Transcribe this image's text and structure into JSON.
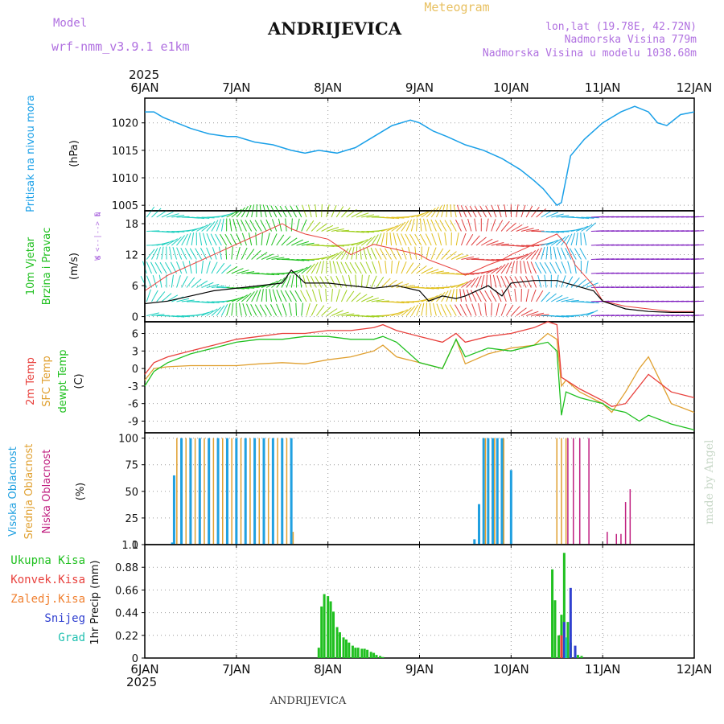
{
  "header": {
    "title": "ANDRIJEVICA",
    "model_label": "Model",
    "model_name": "wrf-nmm_v3.9.1 e1km",
    "meteogram_label": "Meteogram",
    "lonlat": "lon,lat (19.78E, 42.72N)",
    "elevation": "Nadmorska Visina 779m",
    "model_elevation": "Nadmorska Visina u modelu 1038.68m",
    "year_top": "2025"
  },
  "footer": {
    "year_bottom": "2025",
    "station": "ANDRIJEVICA",
    "credit": "made by Angel"
  },
  "days": [
    "6JAN",
    "7JAN",
    "8JAN",
    "9JAN",
    "10JAN",
    "11JAN",
    "12JAN"
  ],
  "colors": {
    "pressure": "#1aa0e8",
    "temp2m": "#e8403c",
    "sfctemp": "#e0a030",
    "dewpt": "#20c020",
    "cloud_high": "#20a0e0",
    "cloud_mid": "#e0a030",
    "cloud_low": "#c02080",
    "precip_total": "#20c020",
    "precip_conv": "#e8403c",
    "precip_freez": "#f08030",
    "precip_snow": "#3040d0",
    "precip_hail": "#20c0b0",
    "wind_speed": "#000000",
    "gust": "#e8403c"
  },
  "chart_data": [
    {
      "type": "line",
      "panel": "pressure",
      "ylabel_lines": [
        "Pritisak na nivou mora",
        "(hPa)"
      ],
      "ylim": [
        1004,
        1024.5
      ],
      "yticks": [
        1005,
        1010,
        1015,
        1020
      ],
      "x_days": [
        0,
        0.1,
        0.2,
        0.35,
        0.5,
        0.7,
        0.9,
        1.0,
        1.2,
        1.4,
        1.6,
        1.75,
        1.9,
        2.1,
        2.3,
        2.5,
        2.7,
        2.9,
        3.0,
        3.15,
        3.3,
        3.5,
        3.7,
        3.9,
        4.1,
        4.25,
        4.35,
        4.45,
        4.5,
        4.55,
        4.65,
        4.8,
        5.0,
        5.2,
        5.35,
        5.5,
        5.6,
        5.7,
        5.85,
        6.0
      ],
      "series": [
        {
          "name": "",
          "values": [
            1022,
            1022,
            1021,
            1020,
            1019,
            1018,
            1017.5,
            1017.5,
            1016.5,
            1016,
            1015,
            1014.5,
            1015,
            1014.5,
            1015.5,
            1017.5,
            1019.5,
            1020.5,
            1020,
            1018.5,
            1017.5,
            1016,
            1015,
            1013.5,
            1011.5,
            1009.5,
            1008,
            1006,
            1005,
            1005.5,
            1014,
            1017,
            1020,
            1022,
            1023,
            1022,
            1020,
            1019.5,
            1021.5,
            1022
          ]
        }
      ]
    },
    {
      "type": "line",
      "panel": "wind",
      "ylabel_lines": [
        "10m Vjetar",
        "Brzina i Pravac",
        "(m/s)"
      ],
      "compass": [
        "N",
        "W <--|--> E",
        "S"
      ],
      "ylim": [
        -1,
        20.5
      ],
      "yticks": [
        0,
        6,
        12,
        18
      ],
      "x_days": [
        0,
        0.25,
        0.5,
        0.75,
        1.0,
        1.25,
        1.5,
        1.6,
        1.75,
        2.0,
        2.25,
        2.5,
        2.75,
        3.0,
        3.1,
        3.25,
        3.4,
        3.5,
        3.75,
        3.9,
        4.0,
        4.25,
        4.5,
        4.6,
        4.7,
        4.9,
        5.0,
        5.25,
        5.5,
        5.75,
        6.0
      ],
      "series": [
        {
          "name": "",
          "values": [
            2.5,
            3,
            4,
            5,
            5.5,
            6,
            6.5,
            9,
            6.5,
            6.5,
            6,
            5.5,
            6,
            5,
            3,
            4,
            3.5,
            4,
            6,
            4,
            6.5,
            7,
            7,
            6.5,
            6,
            5,
            3,
            1.5,
            1,
            0.8,
            0.8
          ]
        },
        {
          "name": "",
          "values": [
            5,
            8,
            10,
            12,
            14,
            16,
            18,
            17,
            16,
            15,
            12,
            14,
            13,
            12,
            11,
            10,
            9,
            8,
            10,
            11,
            12,
            14,
            16,
            14,
            10,
            6,
            3,
            2,
            1.5,
            1,
            1
          ]
        }
      ],
      "arrow_colors": [
        "#20d0c0",
        "#20c020",
        "#a0d020",
        "#e0c020",
        "#e04040",
        "#20b0e0",
        "#8020c0"
      ]
    },
    {
      "type": "line",
      "panel": "temperature",
      "ylabel_lines": [
        "2m Temp",
        "SFC Temp",
        "dewpt Temp",
        "(C)"
      ],
      "ylim": [
        -11,
        8
      ],
      "yticks": [
        -9,
        -6,
        -3,
        0,
        3,
        6
      ],
      "x_days": [
        0,
        0.1,
        0.25,
        0.5,
        0.75,
        1.0,
        1.25,
        1.5,
        1.75,
        2.0,
        2.25,
        2.5,
        2.6,
        2.75,
        3.0,
        3.25,
        3.4,
        3.5,
        3.75,
        4.0,
        4.25,
        4.4,
        4.5,
        4.55,
        4.6,
        4.75,
        5.0,
        5.1,
        5.25,
        5.4,
        5.5,
        5.75,
        6.0
      ],
      "series": [
        {
          "name": "",
          "values": [
            -1,
            1,
            2,
            3,
            4,
            5,
            5.5,
            6,
            6,
            6.5,
            6.5,
            7,
            7.5,
            6.5,
            5.5,
            4.5,
            6,
            4.5,
            5.5,
            6,
            7,
            8,
            7.5,
            -1.5,
            -2,
            -3.5,
            -5.5,
            -6.5,
            -6,
            -3,
            -1,
            -4,
            -5
          ]
        },
        {
          "name": "",
          "values": [
            -2,
            0,
            0.3,
            0.5,
            0.5,
            0.5,
            0.8,
            1,
            0.8,
            1.5,
            2,
            3,
            4,
            2,
            1,
            0,
            5,
            0.8,
            2.5,
            3.5,
            4,
            6,
            5,
            -3,
            -2,
            -4,
            -6,
            -7.5,
            -4,
            0,
            2,
            -6,
            -7.5
          ]
        },
        {
          "name": "",
          "values": [
            -3,
            -0.5,
            1,
            2.5,
            3.5,
            4.5,
            5,
            5,
            5.5,
            5.5,
            5,
            5,
            5.5,
            4.5,
            1,
            0,
            5,
            2,
            3.5,
            3,
            4,
            4.5,
            3,
            -8,
            -4,
            -5,
            -6,
            -7,
            -7.5,
            -9,
            -8,
            -9.5,
            -10.5
          ]
        }
      ]
    },
    {
      "type": "bar",
      "panel": "clouds",
      "ylabel_lines": [
        "Visoka Oblacnost",
        "Srednja Oblacnost",
        "Niska Oblacnost",
        "(%)"
      ],
      "ylim": [
        0,
        105
      ],
      "yticks": [
        0,
        25,
        50,
        75,
        100
      ],
      "series": [
        {
          "name": "",
          "x_days": [
            0.3,
            0.32,
            0.4,
            0.5,
            0.6,
            0.7,
            0.8,
            0.9,
            1.0,
            1.1,
            1.2,
            1.3,
            1.4,
            1.5,
            1.6,
            3.6,
            3.65,
            3.7,
            3.75,
            3.8,
            3.85,
            3.9,
            4.0
          ],
          "values": [
            2,
            65,
            100,
            100,
            100,
            100,
            100,
            100,
            100,
            100,
            100,
            100,
            100,
            100,
            100,
            5,
            38,
            100,
            100,
            100,
            100,
            100,
            70
          ]
        },
        {
          "name": "",
          "x_days": [
            0.35,
            0.45,
            0.55,
            0.65,
            0.75,
            0.85,
            0.95,
            1.05,
            1.15,
            1.25,
            1.35,
            1.45,
            1.55,
            1.62,
            3.72,
            3.82,
            3.92,
            4.5,
            4.55,
            4.6
          ],
          "values": [
            100,
            100,
            100,
            100,
            100,
            100,
            100,
            100,
            100,
            100,
            100,
            100,
            100,
            12,
            100,
            100,
            100,
            100,
            100,
            100
          ]
        },
        {
          "name": "",
          "x_days": [
            4.62,
            4.68,
            4.75,
            4.85,
            5.05,
            5.15,
            5.2,
            5.25,
            5.3
          ],
          "values": [
            100,
            100,
            100,
            100,
            12,
            10,
            10,
            40,
            52
          ]
        }
      ]
    },
    {
      "type": "bar",
      "panel": "precip",
      "ylabel_lines": [
        "1hr Precip (mm)"
      ],
      "legend": [
        "Ukupna Kisa",
        "Konvek.Kisa",
        "Zaledj.Kisa",
        "Snijeg",
        "Grad"
      ],
      "ylim": [
        0,
        1.1
      ],
      "yticks": [
        0,
        0.22,
        0.44,
        0.66,
        0.88,
        1.1
      ],
      "series": [
        {
          "name": "Ukupna Kisa",
          "x_days": [
            1.9,
            1.93,
            1.96,
            2.0,
            2.03,
            2.06,
            2.1,
            2.13,
            2.17,
            2.2,
            2.23,
            2.27,
            2.3,
            2.33,
            2.37,
            2.4,
            2.43,
            2.47,
            2.5,
            2.53,
            2.57,
            2.6,
            4.45,
            4.48,
            4.52,
            4.55,
            4.58,
            4.62,
            4.65,
            4.7,
            4.73,
            4.77
          ],
          "values": [
            0.1,
            0.5,
            0.62,
            0.6,
            0.55,
            0.45,
            0.3,
            0.25,
            0.2,
            0.18,
            0.15,
            0.12,
            0.1,
            0.1,
            0.09,
            0.09,
            0.08,
            0.06,
            0.05,
            0.03,
            0.02,
            0.01,
            0.86,
            0.56,
            0.22,
            0.42,
            1.02,
            0.35,
            0.15,
            0.08,
            0.03,
            0.02
          ]
        },
        {
          "name": "Konvek.Kisa",
          "x_days": [
            4.55
          ],
          "values": [
            0.22
          ]
        },
        {
          "name": "Zaledj.Kisa",
          "x_days": [],
          "values": []
        },
        {
          "name": "Snijeg",
          "x_days": [
            4.58,
            4.65,
            4.7
          ],
          "values": [
            0.35,
            0.68,
            0.12
          ]
        },
        {
          "name": "Grad",
          "x_days": [
            4.6
          ],
          "values": [
            0.2
          ]
        }
      ]
    }
  ]
}
